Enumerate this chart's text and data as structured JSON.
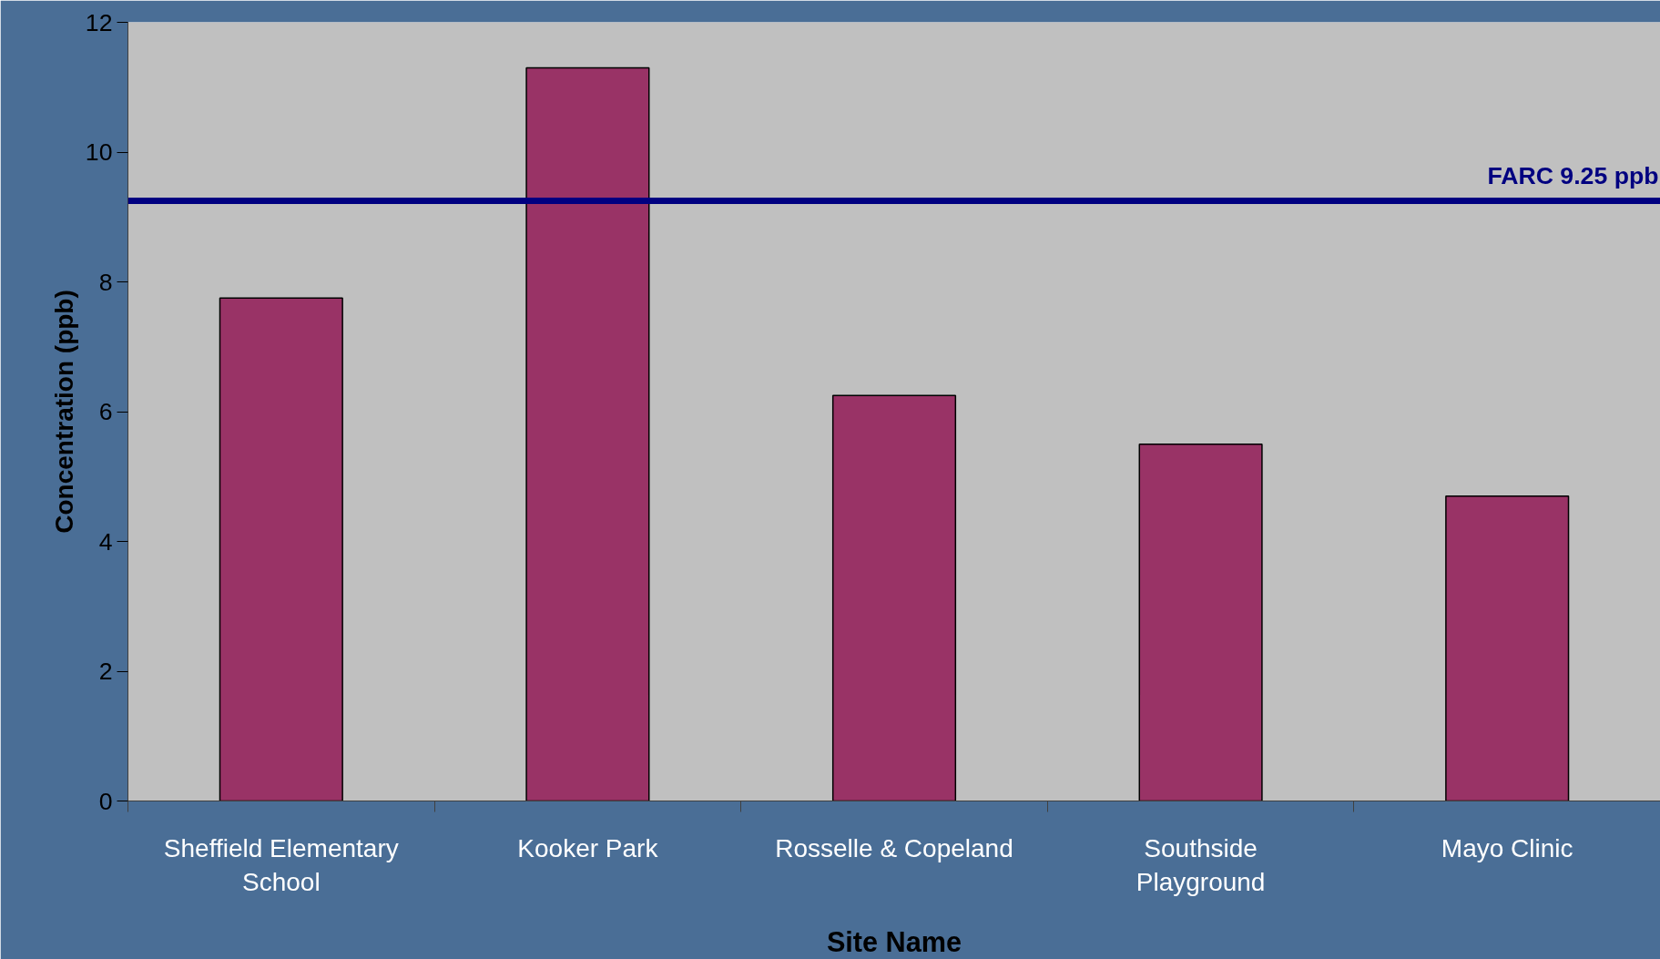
{
  "chart_data": {
    "type": "bar",
    "xlabel": "Site Name",
    "ylabel": "Concentration (ppb)",
    "categories": [
      "Sheffield Elementary\nSchool",
      "Kooker Park",
      "Rosselle & Copeland",
      "Southside\nPlayground",
      "Mayo Clinic"
    ],
    "values": [
      7.75,
      11.3,
      6.25,
      5.5,
      4.7
    ],
    "color": "#993366",
    "ylim": [
      0,
      12
    ],
    "yticks": [
      0,
      2,
      4,
      6,
      8,
      10,
      12
    ],
    "grid": false,
    "ref_lines": [
      {
        "axis": "y",
        "value": 9.25,
        "label": "FARC 9.25 ppb",
        "color": "#000080"
      }
    ]
  }
}
